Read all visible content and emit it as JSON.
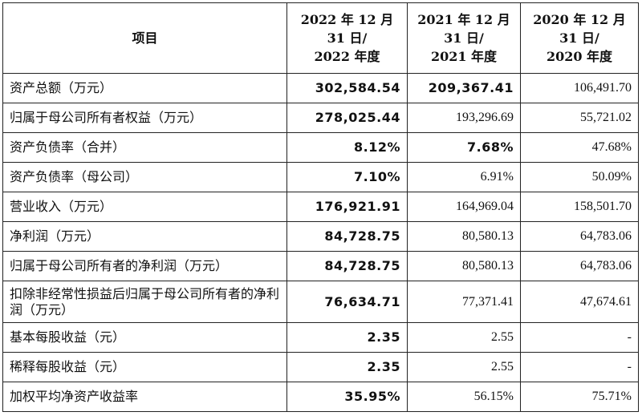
{
  "table": {
    "headers": [
      {
        "lines": [
          "项目"
        ]
      },
      {
        "lines": [
          "2022 年 12 月",
          "31 日/",
          "2022 年度"
        ]
      },
      {
        "lines": [
          "2021 年 12 月",
          "31 日/",
          "2021 年度"
        ]
      },
      {
        "lines": [
          "2020 年 12 月",
          "31 日/",
          "2020 年度"
        ]
      }
    ],
    "rows": [
      {
        "item": "资产总额（万元）",
        "v2022": "302,584.54",
        "v2021": "209,367.41",
        "v2020": "106,491.70"
      },
      {
        "item": "归属于母公司所有者权益（万元）",
        "v2022": "278,025.44",
        "v2021": "193,296.69",
        "v2020": "55,721.02"
      },
      {
        "item": "资产负债率（合并）",
        "v2022": "8.12%",
        "v2021": "7.68%",
        "v2020": "47.68%"
      },
      {
        "item": "资产负债率（母公司）",
        "v2022": "7.10%",
        "v2021": "6.91%",
        "v2020": "50.09%"
      },
      {
        "item": "营业收入（万元）",
        "v2022": "176,921.91",
        "v2021": "164,969.04",
        "v2020": "158,501.70"
      },
      {
        "item": "净利润（万元）",
        "v2022": "84,728.75",
        "v2021": "80,580.13",
        "v2020": "64,783.06"
      },
      {
        "item": "归属于母公司所有者的净利润（万元）",
        "v2022": "84,728.75",
        "v2021": "80,580.13",
        "v2020": "64,783.06"
      },
      {
        "item": "扣除非经常性损益后归属于母公司所有者的净利润（万元）",
        "v2022": "76,634.71",
        "v2021": "77,371.41",
        "v2020": "47,674.61"
      },
      {
        "item": "基本每股收益（元）",
        "v2022": "2.35",
        "v2021": "2.55",
        "v2020": "-"
      },
      {
        "item": "稀释每股收益（元）",
        "v2022": "2.35",
        "v2021": "2.55",
        "v2020": "-"
      },
      {
        "item": "加权平均净资产收益率",
        "v2022": "35.95%",
        "v2021": "56.15%",
        "v2020": "75.71%"
      }
    ]
  }
}
